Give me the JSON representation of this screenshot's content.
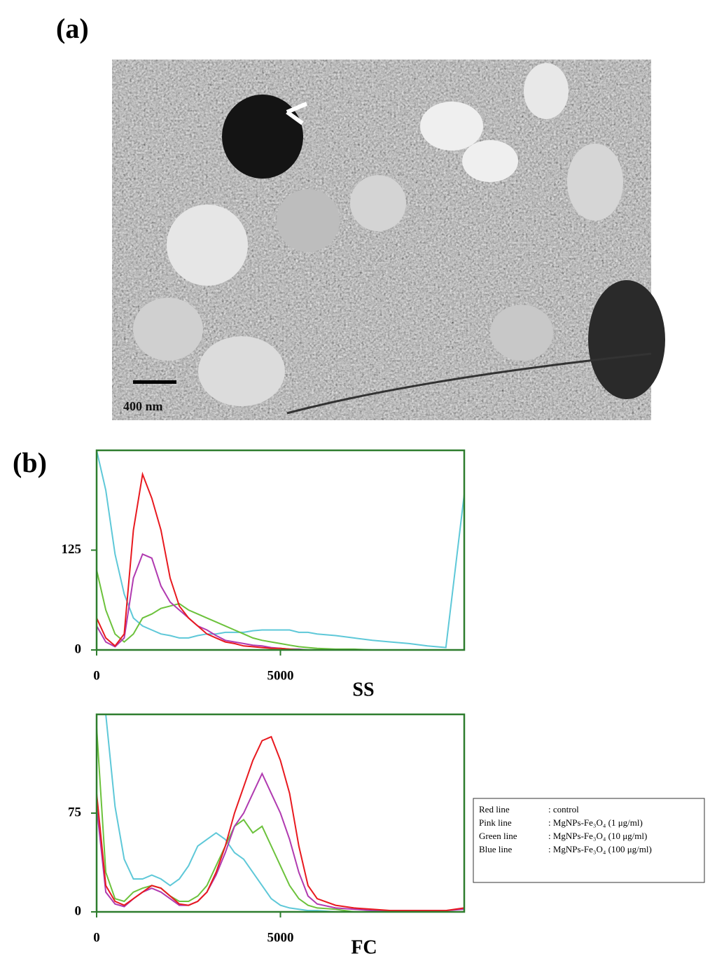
{
  "panel_a": {
    "label": "(a)",
    "scale_bar": "400 nm"
  },
  "panel_b": {
    "label": "(b)"
  },
  "legend": [
    {
      "line": "Red line",
      "description": ": control"
    },
    {
      "line": "Pink line",
      "description": ": MgNPs-Fe₃O₄  (1 μg/ml)"
    },
    {
      "line": "Green line",
      "description": ": MgNPs-Fe₃O₄ (10 μg/ml)"
    },
    {
      "line": "Blue line",
      "description": ": MgNPs-Fe₃O₄ (100 μg/ml)"
    }
  ],
  "chart_data": [
    {
      "type": "line",
      "xlabel": "SS",
      "x": [
        0,
        250,
        500,
        750,
        1000,
        1250,
        1500,
        1750,
        2000,
        2250,
        2500,
        2750,
        3000,
        3250,
        3500,
        3750,
        4000,
        4250,
        4500,
        4750,
        5000,
        5250,
        5500,
        5750,
        6000,
        6500,
        7000,
        7500,
        8000,
        8500,
        9000,
        9500,
        10000
      ],
      "xlim": [
        0,
        10000
      ],
      "xticks": [
        0,
        5000
      ],
      "ylim": [
        0,
        250
      ],
      "yticks": [
        0,
        125
      ],
      "axis_color": "#2e7d2e",
      "series": [
        {
          "color": "#5ec8d8",
          "values": [
            250,
            200,
            120,
            70,
            40,
            30,
            25,
            20,
            18,
            15,
            15,
            18,
            20,
            20,
            22,
            22,
            22,
            24,
            25,
            25,
            25,
            25,
            22,
            22,
            20,
            18,
            15,
            12,
            10,
            8,
            5,
            3,
            195
          ]
        },
        {
          "color": "#6cc23c",
          "values": [
            100,
            50,
            20,
            10,
            20,
            40,
            45,
            52,
            55,
            58,
            50,
            45,
            40,
            35,
            30,
            25,
            20,
            15,
            12,
            10,
            8,
            6,
            4,
            3,
            2,
            1,
            1,
            0,
            0,
            0,
            0,
            0,
            0
          ]
        },
        {
          "color": "#b03ab0",
          "values": [
            30,
            10,
            4,
            15,
            90,
            120,
            115,
            80,
            60,
            50,
            40,
            30,
            25,
            18,
            12,
            10,
            8,
            6,
            5,
            3,
            2,
            1,
            1,
            0,
            0,
            0,
            0,
            0,
            0,
            0,
            0,
            0,
            0
          ]
        },
        {
          "color": "#e8191f",
          "values": [
            40,
            15,
            5,
            20,
            150,
            220,
            190,
            150,
            90,
            55,
            40,
            30,
            20,
            15,
            10,
            8,
            5,
            4,
            3,
            2,
            2,
            1,
            0,
            0,
            0,
            0,
            0,
            0,
            0,
            0,
            0,
            0,
            0
          ]
        }
      ]
    },
    {
      "type": "line",
      "xlabel": "FC",
      "x": [
        0,
        250,
        500,
        750,
        1000,
        1250,
        1500,
        1750,
        2000,
        2250,
        2500,
        2750,
        3000,
        3250,
        3500,
        3750,
        4000,
        4250,
        4500,
        4750,
        5000,
        5250,
        5500,
        5750,
        6000,
        6500,
        7000,
        7500,
        8000,
        8500,
        9000,
        9500,
        10000
      ],
      "xlim": [
        0,
        10000
      ],
      "xticks": [
        0,
        5000
      ],
      "ylim": [
        0,
        150
      ],
      "yticks": [
        0,
        75
      ],
      "axis_color": "#2e7d2e",
      "series": [
        {
          "color": "#5ec8d8",
          "values": [
            150,
            150,
            80,
            40,
            25,
            25,
            28,
            25,
            20,
            25,
            35,
            50,
            55,
            60,
            55,
            45,
            40,
            30,
            20,
            10,
            5,
            3,
            2,
            1,
            1,
            0,
            0,
            0,
            0,
            0,
            0,
            0,
            0
          ]
        },
        {
          "color": "#6cc23c",
          "values": [
            140,
            30,
            10,
            8,
            15,
            18,
            20,
            18,
            12,
            8,
            8,
            12,
            20,
            35,
            50,
            65,
            70,
            60,
            65,
            50,
            35,
            20,
            10,
            5,
            3,
            2,
            0,
            0,
            0,
            0,
            0,
            0,
            0
          ]
        },
        {
          "color": "#b03ab0",
          "values": [
            80,
            15,
            6,
            4,
            10,
            15,
            18,
            15,
            10,
            5,
            5,
            8,
            15,
            28,
            45,
            65,
            75,
            90,
            105,
            90,
            75,
            55,
            30,
            12,
            6,
            3,
            2,
            1,
            1,
            1,
            1,
            1,
            2
          ]
        },
        {
          "color": "#e8191f",
          "values": [
            90,
            20,
            8,
            5,
            10,
            15,
            20,
            18,
            12,
            6,
            5,
            8,
            15,
            30,
            50,
            75,
            95,
            115,
            130,
            133,
            115,
            90,
            50,
            20,
            10,
            5,
            3,
            2,
            1,
            1,
            1,
            1,
            3
          ]
        }
      ]
    }
  ]
}
